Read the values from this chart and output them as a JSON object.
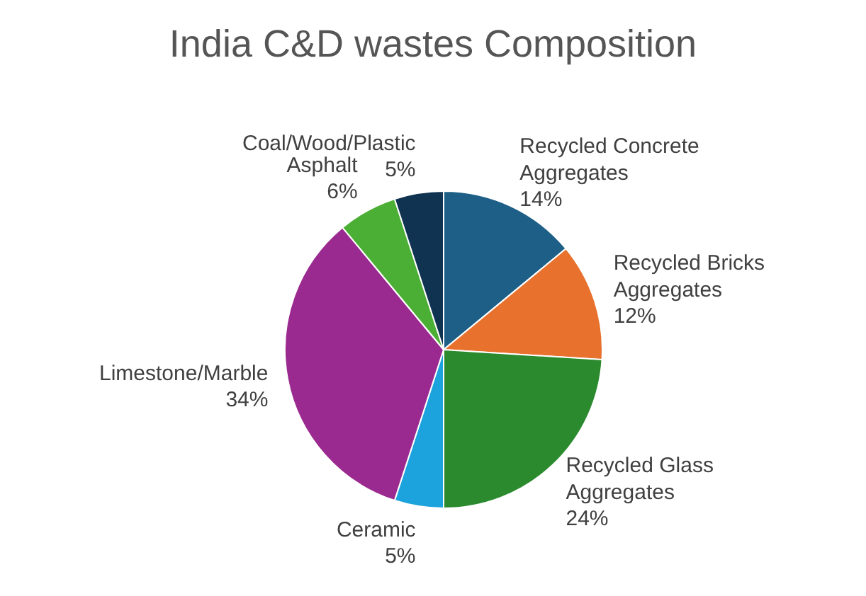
{
  "chart_data": {
    "type": "pie",
    "title": "India C&D wastes Composition",
    "categories": [
      "Recycled Concrete Aggregates",
      "Recycled Bricks Aggregates",
      "Recycled Glass Aggregates",
      "Ceramic",
      "Limestone/Marble",
      "Asphalt",
      "Coal/Wood/Plastic"
    ],
    "values": [
      14,
      12,
      24,
      5,
      34,
      6,
      5
    ],
    "colors": [
      "#1d5f86",
      "#e8712d",
      "#2b8a2e",
      "#1ca2dc",
      "#9a2a8f",
      "#4caf35",
      "#0f3350"
    ],
    "value_labels": [
      "14%",
      "12%",
      "24%",
      "5%",
      "34%",
      "6%",
      "5%"
    ]
  }
}
